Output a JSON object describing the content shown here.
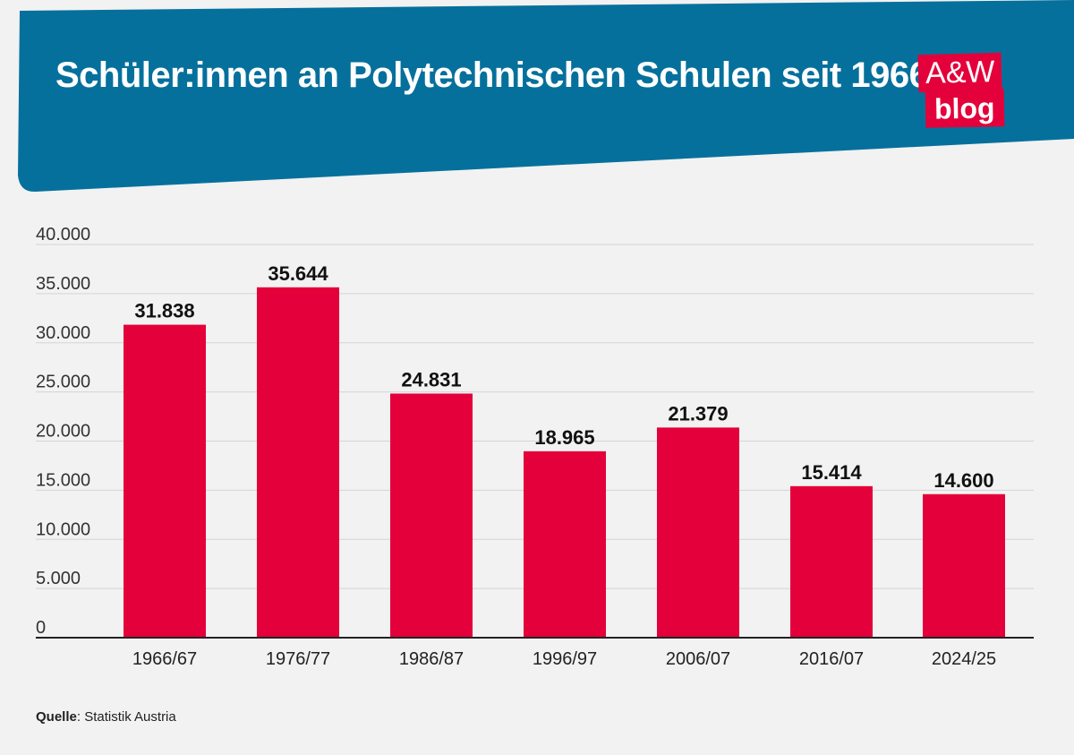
{
  "header": {
    "title": "Schüler:innen an Polytechnischen Schulen seit 1966",
    "logo_top": "A&W",
    "logo_bottom": "blog"
  },
  "colors": {
    "header_bg": "#06709c",
    "bar": "#e4003a",
    "background": "#f2f2f2"
  },
  "chart_data": {
    "type": "bar",
    "title": "Schüler:innen an Polytechnischen Schulen seit 1966",
    "categories": [
      "1966/67",
      "1976/77",
      "1986/87",
      "1996/97",
      "2006/07",
      "2016/07",
      "2024/25"
    ],
    "values": [
      31838,
      35644,
      24831,
      18965,
      21379,
      15414,
      14600
    ],
    "value_labels": [
      "31.838",
      "35.644",
      "24.831",
      "18.965",
      "21.379",
      "15.414",
      "14.600"
    ],
    "y_ticks": [
      0,
      5000,
      10000,
      15000,
      20000,
      25000,
      30000,
      35000,
      40000
    ],
    "y_tick_labels": [
      "0",
      "5.000",
      "10.000",
      "15.000",
      "20.000",
      "25.000",
      "30.000",
      "35.000",
      "40.000"
    ],
    "ylim": [
      0,
      40000
    ],
    "grid": true,
    "legend": "none"
  },
  "source": {
    "label": "Quelle",
    "text": ": Statistik Austria"
  }
}
